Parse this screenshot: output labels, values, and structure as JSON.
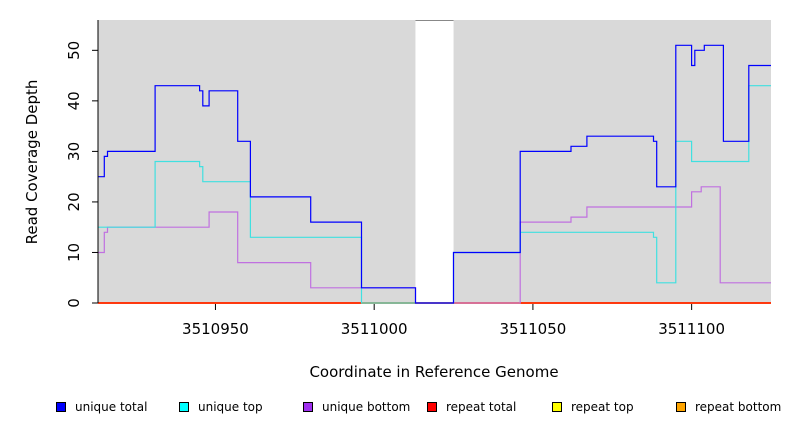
{
  "chart_data": {
    "type": "line",
    "xlabel": "Coordinate in Reference Genome",
    "ylabel": "Read Coverage Depth",
    "xlim": [
      3510913,
      3511125
    ],
    "ylim": [
      0,
      56
    ],
    "x_ticks": [
      3510950,
      3511000,
      3511050,
      3511100
    ],
    "y_ticks": [
      0,
      10,
      20,
      30,
      40,
      50
    ],
    "gap": [
      3511013,
      3511025
    ],
    "grid": false,
    "legend_position": "bottom",
    "series": [
      {
        "name": "unique total",
        "color": "#0000ff",
        "x": [
          3510913,
          3510915,
          3510916,
          3510931,
          3510945,
          3510946,
          3510948,
          3510957,
          3510961,
          3510980,
          3510996,
          3511013,
          3511025,
          3511046,
          3511062,
          3511067,
          3511088,
          3511089,
          3511095,
          3511100,
          3511101,
          3511104,
          3511110,
          3511118,
          3511125
        ],
        "values": [
          25,
          29,
          30,
          43,
          42,
          39,
          42,
          32,
          21,
          16,
          3,
          0,
          10,
          30,
          31,
          33,
          32,
          23,
          51,
          47,
          50,
          51,
          32,
          47,
          47
        ]
      },
      {
        "name": "unique top",
        "color": "#40e0e0",
        "x": [
          3510913,
          3510916,
          3510931,
          3510945,
          3510946,
          3510957,
          3510961,
          3510980,
          3510996,
          3511013,
          3511025,
          3511046,
          3511088,
          3511089,
          3511095,
          3511100,
          3511118,
          3511125
        ],
        "values": [
          15,
          15,
          28,
          27,
          24,
          24,
          13,
          13,
          0,
          0,
          10,
          14,
          13,
          4,
          32,
          28,
          43,
          43
        ]
      },
      {
        "name": "unique bottom",
        "color": "#c070e0",
        "x": [
          3510913,
          3510915,
          3510916,
          3510931,
          3510948,
          3510957,
          3510980,
          3510996,
          3511013,
          3511025,
          3511046,
          3511062,
          3511067,
          3511089,
          3511100,
          3511103,
          3511109,
          3511125
        ],
        "values": [
          10,
          14,
          15,
          15,
          18,
          8,
          3,
          3,
          0,
          0,
          16,
          17,
          19,
          19,
          22,
          23,
          4,
          4
        ]
      },
      {
        "name": "repeat total",
        "color": "#ff0000",
        "x": [
          3510913,
          3511125
        ],
        "values": [
          0,
          0
        ]
      },
      {
        "name": "repeat top",
        "color": "#ffff00",
        "x": [
          3510913,
          3511125
        ],
        "values": [
          0,
          0
        ]
      },
      {
        "name": "repeat bottom",
        "color": "#ffa500",
        "x": [
          3510913,
          3511125
        ],
        "values": [
          0,
          0
        ]
      }
    ]
  },
  "legend": {
    "swatch_colors": [
      "#0000ff",
      "#00ffff",
      "#a030f0",
      "#ff0000",
      "#ffff00",
      "#ffa500"
    ]
  }
}
